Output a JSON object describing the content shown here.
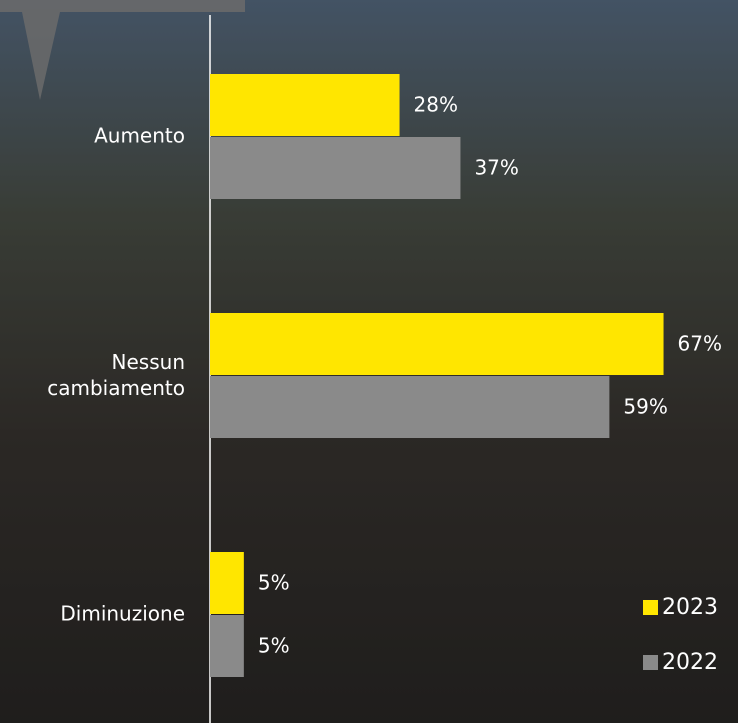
{
  "chart_data": {
    "type": "hbar",
    "categories": [
      "Aumento",
      "Nessun\ncambiamento",
      "Diminuzione"
    ],
    "series": [
      {
        "name": "2023",
        "color": "#ffe600",
        "values": [
          28,
          67,
          5
        ],
        "value_labels": [
          "28%",
          "67%",
          "5%"
        ]
      },
      {
        "name": "2022",
        "color": "#8a8a8a",
        "values": [
          37,
          59,
          5
        ],
        "value_labels": [
          "37%",
          "59%",
          "5%"
        ]
      }
    ],
    "xlim": [
      0,
      78
    ],
    "legend": "bottom-right"
  }
}
